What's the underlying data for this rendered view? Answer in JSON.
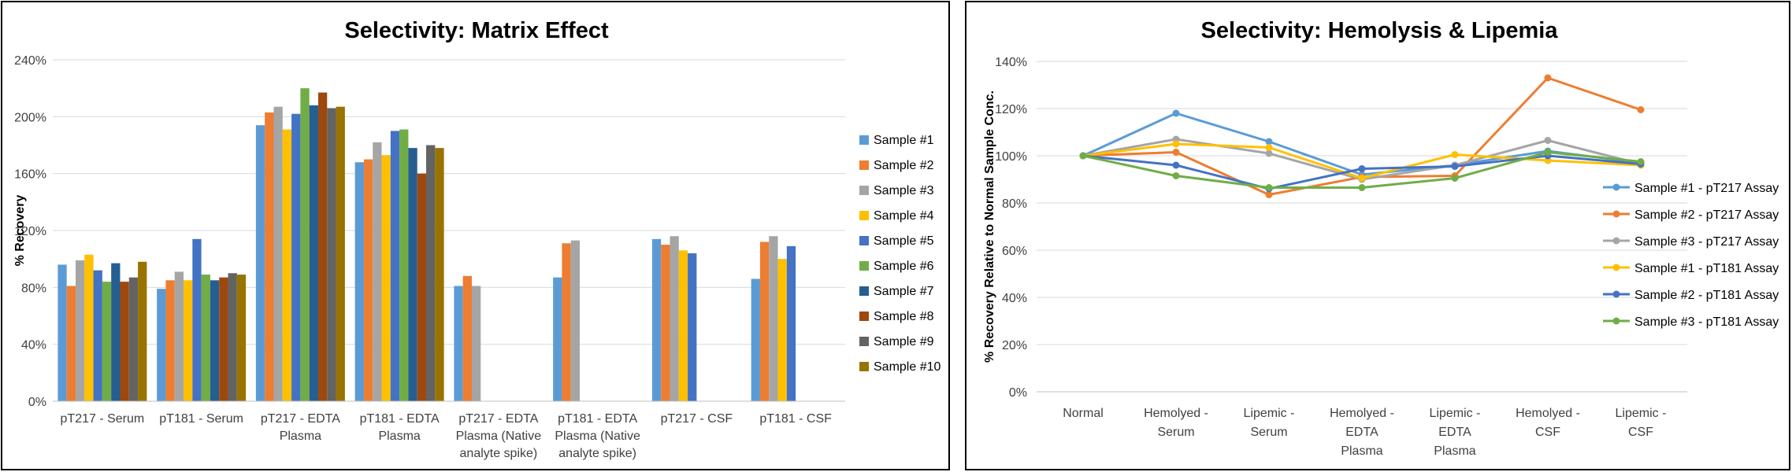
{
  "chart_data": [
    {
      "type": "bar",
      "title": "Selectivity: Matrix Effect",
      "xlabel": "",
      "ylabel": "% Recovery",
      "ylim": [
        0,
        240
      ],
      "yticks": [
        "0%",
        "40%",
        "80%",
        "120%",
        "160%",
        "200%",
        "240%"
      ],
      "grid": true,
      "legend_position": "right",
      "categories": [
        [
          "pT217 - Serum"
        ],
        [
          "pT181 - Serum"
        ],
        [
          "pT217 - EDTA",
          "Plasma"
        ],
        [
          "pT181 - EDTA",
          "Plasma"
        ],
        [
          "pT217 - EDTA",
          "Plasma (Native",
          "analyte spike)"
        ],
        [
          "pT181 - EDTA",
          "Plasma (Native",
          "analyte spike)"
        ],
        [
          "pT217 - CSF"
        ],
        [
          "pT181 - CSF"
        ]
      ],
      "series": [
        {
          "name": "Sample #1",
          "color": "#5B9BD5",
          "values": [
            96,
            79,
            194,
            168,
            81,
            87,
            114,
            86
          ]
        },
        {
          "name": "Sample #2",
          "color": "#ED7D31",
          "values": [
            81,
            85,
            203,
            170,
            88,
            111,
            110,
            112
          ]
        },
        {
          "name": "Sample #3",
          "color": "#A5A5A5",
          "values": [
            99,
            91,
            207,
            182,
            81,
            113,
            116,
            116
          ]
        },
        {
          "name": "Sample #4",
          "color": "#FFC000",
          "values": [
            103,
            85,
            191,
            173,
            null,
            null,
            106,
            100
          ]
        },
        {
          "name": "Sample #5",
          "color": "#4472C4",
          "values": [
            92,
            114,
            202,
            190,
            null,
            null,
            104,
            109
          ]
        },
        {
          "name": "Sample #6",
          "color": "#70AD47",
          "values": [
            84,
            89,
            220,
            191,
            null,
            null,
            null,
            null
          ]
        },
        {
          "name": "Sample #7",
          "color": "#255E91",
          "values": [
            97,
            85,
            208,
            178,
            null,
            null,
            null,
            null
          ]
        },
        {
          "name": "Sample #8",
          "color": "#9E480E",
          "values": [
            84,
            87,
            217,
            160,
            null,
            null,
            null,
            null
          ]
        },
        {
          "name": "Sample #9",
          "color": "#636363",
          "values": [
            87,
            90,
            206,
            180,
            null,
            null,
            null,
            null
          ]
        },
        {
          "name": "Sample #10",
          "color": "#997300",
          "values": [
            98,
            89,
            207,
            178,
            null,
            null,
            null,
            null
          ]
        }
      ]
    },
    {
      "type": "line",
      "title": "Selectivity: Hemolysis & Lipemia",
      "xlabel": "",
      "ylabel": "% Recovery Relative to Normal Sample Conc.",
      "ylim": [
        0,
        140
      ],
      "yticks": [
        "0%",
        "20%",
        "40%",
        "60%",
        "80%",
        "100%",
        "120%",
        "140%"
      ],
      "grid": true,
      "legend_position": "right",
      "categories": [
        [
          "Normal"
        ],
        [
          "Hemolyed -",
          "Serum"
        ],
        [
          "Lipemic -",
          "Serum"
        ],
        [
          "Hemolyed -",
          "EDTA",
          "Plasma"
        ],
        [
          "Lipemic -",
          "EDTA",
          "Plasma"
        ],
        [
          "Hemolyed -",
          "CSF"
        ],
        [
          "Lipemic -",
          "CSF"
        ]
      ],
      "series": [
        {
          "name": "Sample #1 - pT217 Assay",
          "color": "#5B9BD5",
          "values": [
            100,
            118,
            106,
            92,
            96,
            102,
            97
          ]
        },
        {
          "name": "Sample #2 - pT217 Assay",
          "color": "#ED7D31",
          "values": [
            100,
            101.5,
            83.5,
            91,
            91.5,
            133,
            119.5
          ]
        },
        {
          "name": "Sample #3 - pT217 Assay",
          "color": "#A5A5A5",
          "values": [
            100,
            107,
            101,
            90,
            96,
            106.5,
            96.5
          ]
        },
        {
          "name": "Sample #1 - pT181 Assay",
          "color": "#FFC000",
          "values": [
            100,
            105,
            103.5,
            90.5,
            100.5,
            98,
            96
          ]
        },
        {
          "name": "Sample #2 - pT181 Assay",
          "color": "#4472C4",
          "values": [
            100,
            96,
            86,
            94.5,
            95.5,
            100,
            96.5
          ]
        },
        {
          "name": "Sample #3 - pT181 Assay",
          "color": "#70AD47",
          "values": [
            100,
            91.5,
            86.5,
            86.5,
            90.5,
            101.5,
            97.5
          ]
        }
      ]
    }
  ]
}
